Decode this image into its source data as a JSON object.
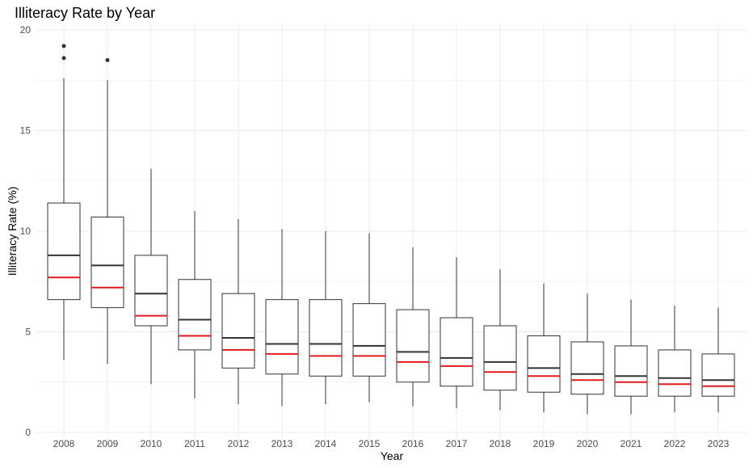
{
  "chart_data": {
    "type": "boxplot",
    "title": "Illiteracy Rate by Year",
    "xlabel": "Year",
    "ylabel": "Illiteracy Rate (%)",
    "ylim": [
      0,
      20
    ],
    "yticks": [
      0,
      5,
      10,
      15,
      20
    ],
    "grid": true,
    "legend": "none",
    "colors": {
      "box": "#333333",
      "median": "#333333",
      "mean": "#e31a1c",
      "grid": "#ebebeb",
      "outlier": "#333333"
    },
    "categories": [
      "2008",
      "2009",
      "2010",
      "2011",
      "2012",
      "2013",
      "2014",
      "2015",
      "2016",
      "2017",
      "2018",
      "2019",
      "2020",
      "2021",
      "2022",
      "2023"
    ],
    "boxes": [
      {
        "year": "2008",
        "whisker_low": 3.6,
        "q1": 6.6,
        "median": 8.8,
        "mean": 7.7,
        "q3": 11.4,
        "whisker_high": 17.6,
        "outliers": [
          18.6,
          19.2
        ]
      },
      {
        "year": "2009",
        "whisker_low": 3.4,
        "q1": 6.2,
        "median": 8.3,
        "mean": 7.2,
        "q3": 10.7,
        "whisker_high": 17.5,
        "outliers": [
          18.5
        ]
      },
      {
        "year": "2010",
        "whisker_low": 2.4,
        "q1": 5.3,
        "median": 6.9,
        "mean": 5.8,
        "q3": 8.8,
        "whisker_high": 13.1,
        "outliers": []
      },
      {
        "year": "2011",
        "whisker_low": 1.7,
        "q1": 4.1,
        "median": 5.6,
        "mean": 4.8,
        "q3": 7.6,
        "whisker_high": 11.0,
        "outliers": []
      },
      {
        "year": "2012",
        "whisker_low": 1.4,
        "q1": 3.2,
        "median": 4.7,
        "mean": 4.1,
        "q3": 6.9,
        "whisker_high": 10.6,
        "outliers": []
      },
      {
        "year": "2013",
        "whisker_low": 1.3,
        "q1": 2.9,
        "median": 4.4,
        "mean": 3.9,
        "q3": 6.6,
        "whisker_high": 10.1,
        "outliers": []
      },
      {
        "year": "2014",
        "whisker_low": 1.4,
        "q1": 2.8,
        "median": 4.4,
        "mean": 3.8,
        "q3": 6.6,
        "whisker_high": 10.0,
        "outliers": []
      },
      {
        "year": "2015",
        "whisker_low": 1.5,
        "q1": 2.8,
        "median": 4.3,
        "mean": 3.8,
        "q3": 6.4,
        "whisker_high": 9.9,
        "outliers": []
      },
      {
        "year": "2016",
        "whisker_low": 1.3,
        "q1": 2.5,
        "median": 4.0,
        "mean": 3.5,
        "q3": 6.1,
        "whisker_high": 9.2,
        "outliers": []
      },
      {
        "year": "2017",
        "whisker_low": 1.2,
        "q1": 2.3,
        "median": 3.7,
        "mean": 3.3,
        "q3": 5.7,
        "whisker_high": 8.7,
        "outliers": []
      },
      {
        "year": "2018",
        "whisker_low": 1.1,
        "q1": 2.1,
        "median": 3.5,
        "mean": 3.0,
        "q3": 5.3,
        "whisker_high": 8.1,
        "outliers": []
      },
      {
        "year": "2019",
        "whisker_low": 1.0,
        "q1": 2.0,
        "median": 3.2,
        "mean": 2.8,
        "q3": 4.8,
        "whisker_high": 7.4,
        "outliers": []
      },
      {
        "year": "2020",
        "whisker_low": 0.9,
        "q1": 1.9,
        "median": 2.9,
        "mean": 2.6,
        "q3": 4.5,
        "whisker_high": 6.9,
        "outliers": []
      },
      {
        "year": "2021",
        "whisker_low": 0.9,
        "q1": 1.8,
        "median": 2.8,
        "mean": 2.5,
        "q3": 4.3,
        "whisker_high": 6.6,
        "outliers": []
      },
      {
        "year": "2022",
        "whisker_low": 1.0,
        "q1": 1.8,
        "median": 2.7,
        "mean": 2.4,
        "q3": 4.1,
        "whisker_high": 6.3,
        "outliers": []
      },
      {
        "year": "2023",
        "whisker_low": 1.0,
        "q1": 1.8,
        "median": 2.6,
        "mean": 2.3,
        "q3": 3.9,
        "whisker_high": 6.2,
        "outliers": []
      }
    ]
  }
}
